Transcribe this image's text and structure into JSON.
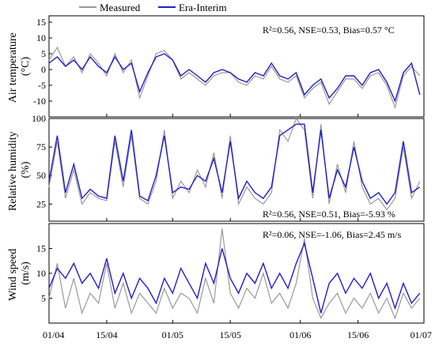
{
  "legend": {
    "items": [
      {
        "label": "Measured",
        "color": "#999999"
      },
      {
        "label": "Era-Interim",
        "color": "#1f1fcc"
      }
    ]
  },
  "x_axis": {
    "tick_labels": [
      "01/04",
      "15/04",
      "01/05",
      "15/05",
      "01/06",
      "15/06",
      "01/07"
    ],
    "tick_days": [
      0,
      14,
      30,
      44,
      61,
      75,
      91
    ]
  },
  "chart_data": [
    {
      "type": "line",
      "title": "",
      "ylabel_lines": [
        "Air temperature",
        "(°C)"
      ],
      "stats_text": "R²=0.56, NSE=0.53, Bias=0.57 °C",
      "ylim": [
        -15,
        17
      ],
      "yticks": [
        -10,
        -5,
        0,
        5,
        10,
        15
      ],
      "xlim": [
        0,
        91
      ],
      "series": [
        {
          "name": "Measured",
          "color": "#999999",
          "x": [
            0,
            2,
            4,
            6,
            8,
            10,
            12,
            14,
            16,
            18,
            20,
            22,
            24,
            26,
            28,
            30,
            32,
            34,
            36,
            38,
            40,
            42,
            44,
            46,
            48,
            50,
            52,
            54,
            56,
            58,
            60,
            62,
            64,
            66,
            68,
            70,
            72,
            74,
            76,
            78,
            80,
            82,
            84,
            86,
            88,
            90
          ],
          "y": [
            3,
            7,
            1,
            4,
            -1,
            5,
            2,
            -2,
            5,
            -1,
            3,
            -9,
            -2,
            5,
            6,
            3,
            -3,
            -1,
            -3,
            -5,
            -2,
            -1,
            -1,
            -4,
            -5,
            -2,
            -3,
            1,
            -3,
            -4,
            -2,
            -9,
            -6,
            -4,
            -11,
            -7,
            -3,
            -3,
            -6,
            -2,
            -1,
            -5,
            -12,
            -2,
            1,
            -2
          ]
        },
        {
          "name": "Era-Interim",
          "color": "#1f1fcc",
          "x": [
            0,
            2,
            4,
            6,
            8,
            10,
            12,
            14,
            16,
            18,
            20,
            22,
            24,
            26,
            28,
            30,
            32,
            34,
            36,
            38,
            40,
            42,
            44,
            46,
            48,
            50,
            52,
            54,
            56,
            58,
            60,
            62,
            64,
            66,
            68,
            70,
            72,
            74,
            76,
            78,
            80,
            82,
            84,
            86,
            88,
            90
          ],
          "y": [
            2,
            4,
            1,
            3,
            0,
            4,
            1,
            -1,
            4,
            0,
            2,
            -7,
            -1,
            4,
            5,
            3,
            -2,
            0,
            -2,
            -4,
            -1,
            0,
            -1,
            -3,
            -4,
            -1,
            -2,
            2,
            -2,
            -3,
            -1,
            -8,
            -5,
            -3,
            -9,
            -6,
            -2,
            -2,
            -5,
            -1,
            0,
            -4,
            -10,
            -1,
            2,
            -8
          ]
        }
      ]
    },
    {
      "type": "line",
      "title": "",
      "ylabel_lines": [
        "Relative humidity",
        "(%)"
      ],
      "stats_text": "R²=0.56, NSE=0.51, Bias=-5.93 %",
      "ylim": [
        10,
        100
      ],
      "yticks": [
        25,
        50,
        75,
        100
      ],
      "xlim": [
        0,
        91
      ],
      "series": [
        {
          "name": "Measured",
          "color": "#999999",
          "x": [
            0,
            2,
            4,
            6,
            8,
            10,
            12,
            14,
            16,
            18,
            20,
            22,
            24,
            26,
            28,
            30,
            32,
            34,
            36,
            38,
            40,
            42,
            44,
            46,
            48,
            50,
            52,
            54,
            56,
            58,
            60,
            62,
            64,
            66,
            68,
            70,
            72,
            74,
            76,
            78,
            80,
            82,
            84,
            86,
            88,
            90
          ],
          "y": [
            40,
            80,
            30,
            55,
            25,
            35,
            30,
            28,
            80,
            40,
            85,
            30,
            25,
            45,
            90,
            30,
            45,
            35,
            55,
            40,
            70,
            30,
            85,
            25,
            40,
            30,
            25,
            35,
            90,
            80,
            100,
            90,
            30,
            95,
            25,
            60,
            35,
            80,
            40,
            25,
            30,
            20,
            30,
            75,
            30,
            45
          ]
        },
        {
          "name": "Era-Interim",
          "color": "#1f1fcc",
          "x": [
            0,
            2,
            4,
            6,
            8,
            10,
            12,
            14,
            16,
            18,
            20,
            22,
            24,
            26,
            28,
            30,
            32,
            34,
            36,
            38,
            40,
            42,
            44,
            46,
            48,
            50,
            52,
            54,
            56,
            58,
            60,
            62,
            64,
            66,
            68,
            70,
            72,
            74,
            76,
            78,
            80,
            82,
            84,
            86,
            88,
            90
          ],
          "y": [
            45,
            85,
            35,
            60,
            30,
            38,
            32,
            30,
            85,
            45,
            90,
            32,
            28,
            50,
            85,
            35,
            40,
            38,
            50,
            45,
            65,
            35,
            80,
            30,
            45,
            35,
            30,
            40,
            85,
            90,
            95,
            95,
            35,
            90,
            30,
            55,
            40,
            75,
            45,
            30,
            35,
            25,
            35,
            80,
            35,
            40
          ]
        }
      ]
    },
    {
      "type": "line",
      "title": "",
      "ylabel_lines": [
        "Wind speed",
        "(m/s)"
      ],
      "stats_text": "R²=0.06, NSE=-1.06, Bias=2.45 m/s",
      "ylim": [
        0,
        20
      ],
      "yticks": [
        5,
        10,
        15
      ],
      "xlim": [
        0,
        91
      ],
      "series": [
        {
          "name": "Measured",
          "color": "#999999",
          "x": [
            0,
            2,
            4,
            6,
            8,
            10,
            12,
            14,
            16,
            18,
            20,
            22,
            24,
            26,
            28,
            30,
            32,
            34,
            36,
            38,
            40,
            42,
            44,
            46,
            48,
            50,
            52,
            54,
            56,
            58,
            60,
            62,
            64,
            66,
            68,
            70,
            72,
            74,
            76,
            78,
            80,
            82,
            84,
            86,
            88,
            90
          ],
          "y": [
            5,
            12,
            3,
            9,
            2,
            6,
            4,
            12,
            3,
            8,
            2,
            6,
            4,
            2,
            7,
            3,
            6,
            5,
            2,
            9,
            4,
            19,
            6,
            3,
            7,
            5,
            10,
            4,
            6,
            3,
            8,
            17,
            5,
            1,
            4,
            6,
            2,
            5,
            3,
            6,
            2,
            5,
            1,
            6,
            3,
            5
          ]
        },
        {
          "name": "Era-Interim",
          "color": "#1f1fcc",
          "x": [
            0,
            2,
            4,
            6,
            8,
            10,
            12,
            14,
            16,
            18,
            20,
            22,
            24,
            26,
            28,
            30,
            32,
            34,
            36,
            38,
            40,
            42,
            44,
            46,
            48,
            50,
            52,
            54,
            56,
            58,
            60,
            62,
            64,
            66,
            68,
            70,
            72,
            74,
            76,
            78,
            80,
            82,
            84,
            86,
            88,
            90
          ],
          "y": [
            7,
            11,
            9,
            12,
            8,
            10,
            7,
            13,
            6,
            10,
            5,
            9,
            7,
            4,
            9,
            6,
            11,
            8,
            5,
            12,
            8,
            15,
            9,
            6,
            10,
            8,
            12,
            7,
            10,
            7,
            12,
            16,
            9,
            2,
            8,
            10,
            6,
            9,
            7,
            10,
            5,
            8,
            3,
            8,
            4,
            6
          ]
        }
      ]
    }
  ]
}
